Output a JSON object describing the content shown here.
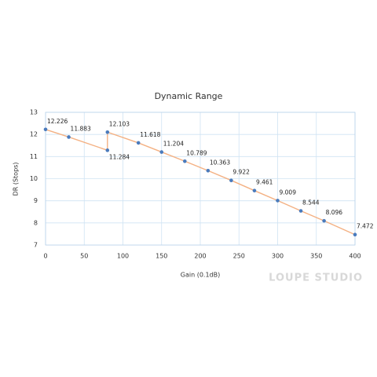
{
  "chart_data": {
    "type": "line",
    "title": "Dynamic Range",
    "x_label": "Gain (0.1dB)",
    "y_label": "DR (Stops)",
    "x": [
      0,
      30,
      80,
      80,
      120,
      150,
      180,
      210,
      240,
      270,
      300,
      330,
      360,
      400
    ],
    "series": [
      {
        "name": "DR",
        "color": "#f4b183",
        "marker_color": "#4a7bbd",
        "values": [
          12.226,
          11.883,
          11.284,
          12.103,
          11.618,
          11.204,
          10.789,
          10.363,
          9.922,
          9.461,
          9.009,
          8.544,
          8.096,
          7.472
        ]
      }
    ],
    "xlim": [
      0,
      400
    ],
    "xticks": [
      0,
      50,
      100,
      150,
      200,
      250,
      300,
      350,
      400
    ],
    "ylim": [
      7,
      13
    ],
    "yticks": [
      7,
      8,
      9,
      10,
      11,
      12,
      13
    ],
    "grid": true,
    "watermark": "LOUPE STUDIO"
  }
}
